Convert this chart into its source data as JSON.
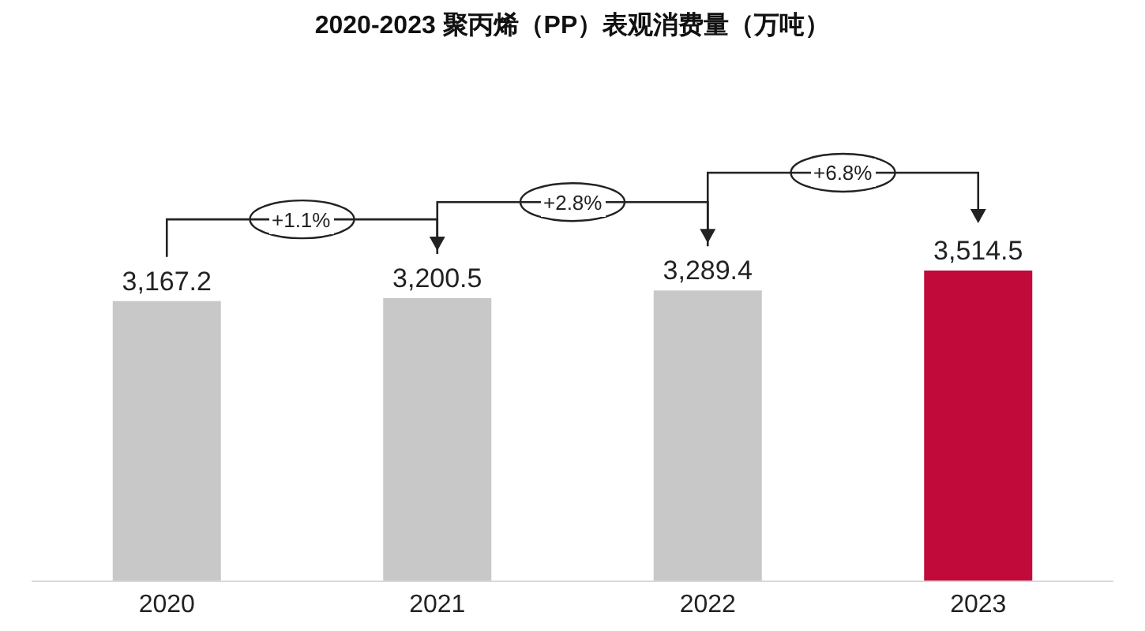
{
  "chart_data": {
    "type": "bar",
    "title": "2020-2023 聚丙烯（PP）表观消费量（万吨）",
    "categories": [
      "2020",
      "2021",
      "2022",
      "2023"
    ],
    "values": [
      3167.2,
      3200.5,
      3289.4,
      3514.5
    ],
    "colors": [
      "#c8c8c8",
      "#c8c8c8",
      "#c8c8c8",
      "#c10a3a"
    ],
    "value_labels": [
      "3,167.2",
      "3,200.5",
      "3,289.4",
      "3,514.5"
    ],
    "tick_labels": "x",
    "grid": false,
    "legend": false,
    "annotations": [
      "+1.1%",
      "+2.8%",
      "+6.8%"
    ]
  }
}
